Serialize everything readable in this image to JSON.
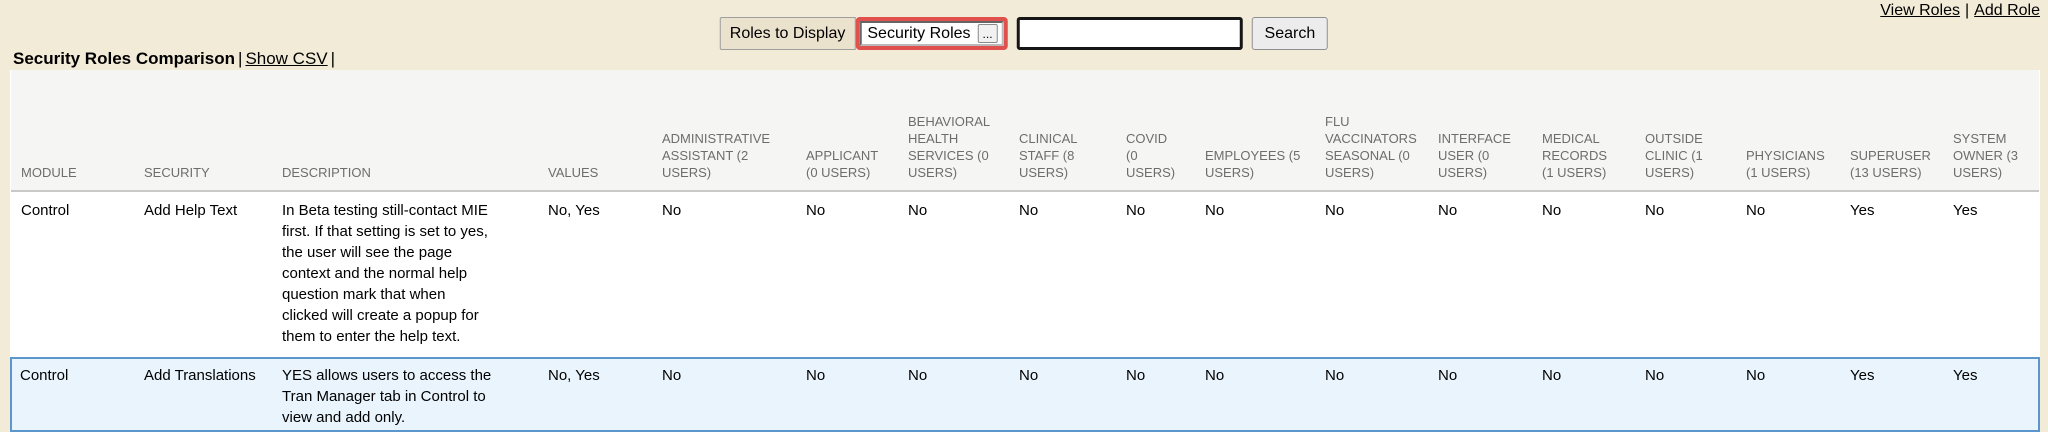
{
  "colors": {
    "page_background": "#f2ebd8",
    "highlight_border_red": "#e0504d",
    "header_band_background": "#f5f5f3",
    "header_text": "#6d6d6d",
    "header_bottom_border": "#c9c9c9",
    "highlight_row_background": "#e9f4fc",
    "highlight_row_border": "#5b97cd"
  },
  "top_links": {
    "view_roles": "View Roles",
    "separator": "|",
    "add_role": "Add Role"
  },
  "controls": {
    "roles_to_display_label": "Roles to Display",
    "roles_select_value": "Security Roles",
    "roles_select_button_label": "...",
    "search_input_value": "",
    "search_button_label": "Search"
  },
  "heading": {
    "title": "Security Roles Comparison",
    "separator": "|",
    "show_csv_label": "Show CSV"
  },
  "table": {
    "columns": [
      "MODULE",
      "SECURITY",
      "DESCRIPTION",
      "VALUES",
      "ADMINISTRATIVE ASSISTANT (2 USERS)",
      "APPLICANT (0 USERS)",
      "BEHAVIORAL HEALTH SERVICES (0 USERS)",
      "CLINICAL STAFF (8 USERS)",
      "COVID (0 USERS)",
      "EMPLOYEES (5 USERS)",
      "FLU VACCINATORS SEASONAL (0 USERS)",
      "INTERFACE USER (0 USERS)",
      "MEDICAL RECORDS (1 USERS)",
      "OUTSIDE CLINIC (1 USERS)",
      "PHYSICIANS (1 USERS)",
      "SUPERUSER (13 USERS)",
      "SYSTEM OWNER (3 USERS)"
    ],
    "column_ids": [
      "module",
      "security",
      "description",
      "values",
      "administrative-assistant",
      "applicant",
      "behavioral-health-services",
      "clinical-staff",
      "covid",
      "employees",
      "flu-vaccinators-seasonal",
      "interface-user",
      "medical-records",
      "outside-clinic",
      "physicians",
      "superuser",
      "system-owner"
    ],
    "rows": [
      {
        "highlighted": false,
        "cells": [
          "Control",
          "Add Help Text",
          "In Beta testing still-contact MIE first. If that setting is set to yes, the user will see the page context and the normal help question mark that when clicked will create a popup for them to enter the help text.",
          "No, Yes",
          "No",
          "No",
          "No",
          "No",
          "No",
          "No",
          "No",
          "No",
          "No",
          "No",
          "No",
          "Yes",
          "Yes"
        ]
      },
      {
        "highlighted": true,
        "cells": [
          "Control",
          "Add Translations",
          "YES allows users to access the Tran Manager tab in Control to view and add only.",
          "No, Yes",
          "No",
          "No",
          "No",
          "No",
          "No",
          "No",
          "No",
          "No",
          "No",
          "No",
          "No",
          "Yes",
          "Yes"
        ]
      }
    ]
  }
}
